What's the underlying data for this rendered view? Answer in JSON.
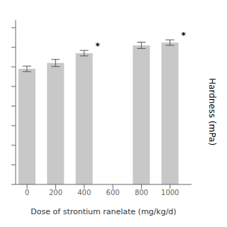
{
  "chart_data": {
    "type": "bar",
    "x": [
      0,
      200,
      400,
      800,
      1000
    ],
    "values": [
      295,
      310,
      335,
      355,
      362
    ],
    "errors": [
      7,
      9,
      7,
      8,
      7
    ],
    "annotations": [
      {
        "x": 400,
        "text": "*"
      },
      {
        "x": 1000,
        "text": "*"
      }
    ],
    "xlabel": "Dose of strontium ranelate (mg/kg/d)",
    "ylabel": "Hardness (mPa)",
    "xlim": [
      -80,
      1150
    ],
    "xticks": [
      0,
      200,
      400,
      600,
      800,
      1000
    ],
    "ylim": [
      0,
      420
    ],
    "yticks": [
      0,
      50,
      100,
      150,
      200,
      250,
      300,
      350,
      400
    ],
    "color": "#c8c8c8",
    "grid": false,
    "tick_labels": "x"
  }
}
